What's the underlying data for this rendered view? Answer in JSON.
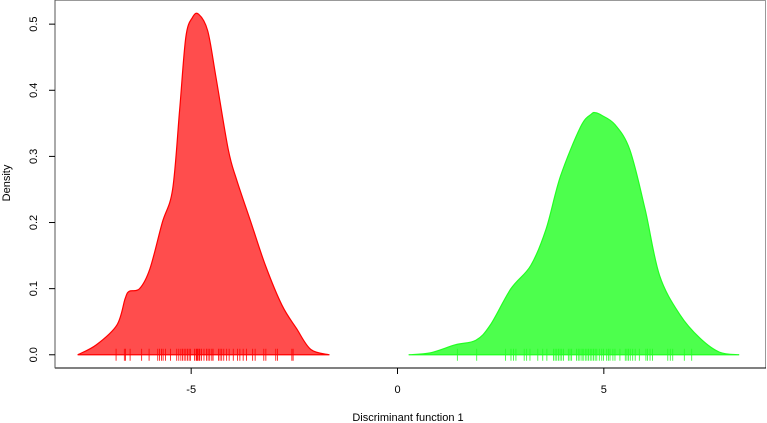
{
  "chart_data": {
    "type": "area",
    "title": "",
    "xlabel": "Discriminant function 1",
    "ylabel": "Density",
    "xlim": [
      -8.3,
      8.93
    ],
    "ylim": [
      -0.02,
      0.535
    ],
    "xticks": [
      -5,
      0,
      5
    ],
    "xtick_labels": [
      "-5",
      "0",
      "5"
    ],
    "yticks": [
      0.0,
      0.1,
      0.2,
      0.3,
      0.4,
      0.5
    ],
    "ytick_labels": [
      "0.0",
      "0.1",
      "0.2",
      "0.3",
      "0.4",
      "0.5"
    ],
    "grid": false,
    "legend": "none",
    "series": [
      {
        "color": "#FF0000",
        "fill": "#FF4D4D",
        "x": [
          -7.75,
          -7.3,
          -6.8,
          -6.6,
          -6.5,
          -6.25,
          -6.0,
          -5.7,
          -5.45,
          -5.28,
          -5.13,
          -4.97,
          -4.82,
          -4.6,
          -4.4,
          -4.1,
          -3.9,
          -3.55,
          -3.2,
          -2.8,
          -2.45,
          -2.1,
          -1.65
        ],
        "y": [
          0.0,
          0.015,
          0.045,
          0.085,
          0.096,
          0.1,
          0.13,
          0.2,
          0.25,
          0.37,
          0.48,
          0.51,
          0.515,
          0.49,
          0.42,
          0.31,
          0.265,
          0.2,
          0.135,
          0.075,
          0.04,
          0.008,
          0.0
        ],
        "rug": [
          -6.82,
          -6.62,
          -6.59,
          -6.48,
          -6.2,
          -6.02,
          -5.81,
          -5.77,
          -5.72,
          -5.68,
          -5.62,
          -5.5,
          -5.35,
          -5.3,
          -5.25,
          -5.21,
          -5.17,
          -5.13,
          -5.09,
          -5.05,
          -5.02,
          -4.92,
          -4.88,
          -4.86,
          -4.84,
          -4.81,
          -4.79,
          -4.75,
          -4.69,
          -4.63,
          -4.59,
          -4.55,
          -4.5,
          -4.47,
          -4.34,
          -4.3,
          -4.26,
          -4.21,
          -4.14,
          -4.08,
          -3.98,
          -3.88,
          -3.82,
          -3.74,
          -3.66,
          -3.51,
          -3.45,
          -3.24,
          -3.19,
          -2.95,
          -2.91,
          -2.56,
          -2.53
        ]
      },
      {
        "color": "#22FF22",
        "fill": "#4DFF4D",
        "x": [
          0.27,
          0.8,
          1.4,
          1.9,
          2.25,
          2.75,
          3.23,
          3.6,
          3.95,
          4.44,
          4.7,
          4.8,
          4.95,
          5.27,
          5.63,
          6.0,
          6.35,
          6.85,
          7.33,
          7.8,
          8.28
        ],
        "y": [
          0.0,
          0.003,
          0.015,
          0.022,
          0.045,
          0.1,
          0.135,
          0.19,
          0.27,
          0.345,
          0.364,
          0.366,
          0.362,
          0.348,
          0.31,
          0.22,
          0.12,
          0.06,
          0.025,
          0.004,
          0.0
        ],
        "rug": [
          1.45,
          1.92,
          2.62,
          2.75,
          2.81,
          2.87,
          3.07,
          3.13,
          3.21,
          3.4,
          3.52,
          3.62,
          3.78,
          3.82,
          3.86,
          3.9,
          3.94,
          3.98,
          4.02,
          4.14,
          4.18,
          4.22,
          4.34,
          4.38,
          4.42,
          4.47,
          4.5,
          4.55,
          4.59,
          4.63,
          4.67,
          4.71,
          4.75,
          4.79,
          4.83,
          4.89,
          4.95,
          4.99,
          5.07,
          5.11,
          5.15,
          5.22,
          5.27,
          5.39,
          5.52,
          5.56,
          5.6,
          5.64,
          5.7,
          5.76,
          5.86,
          6.02,
          6.06,
          6.12,
          6.18,
          6.55,
          6.61,
          6.67,
          6.95,
          7.13
        ]
      }
    ]
  }
}
